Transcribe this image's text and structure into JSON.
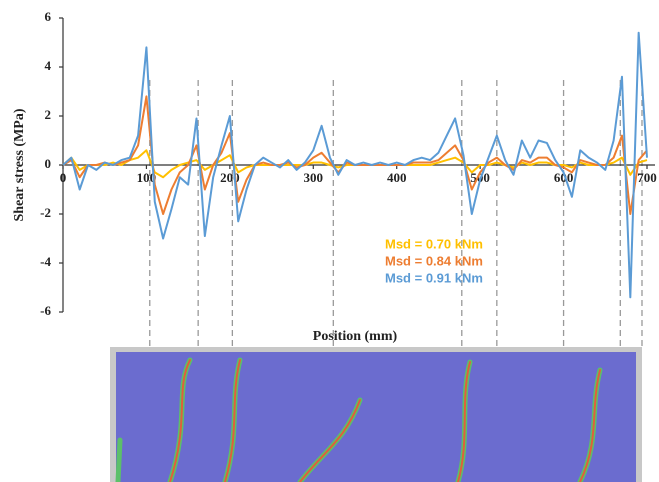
{
  "chart_data": {
    "type": "line",
    "y_label": "Shear stress (MPa)",
    "x_label": "Position (mm)",
    "xlim": [
      0,
      700
    ],
    "xticks": [
      0,
      100,
      200,
      300,
      400,
      500,
      600,
      700
    ],
    "ylim": [
      -6,
      6
    ],
    "yticks": [
      -6,
      -4,
      -2,
      0,
      2,
      4,
      6
    ],
    "grid": false,
    "reference_lines": [
      104,
      162,
      203,
      324,
      478,
      520,
      600,
      668,
      694
    ],
    "x": [
      0,
      10,
      20,
      30,
      40,
      50,
      60,
      70,
      80,
      90,
      100,
      110,
      120,
      130,
      140,
      150,
      160,
      170,
      180,
      190,
      200,
      210,
      220,
      230,
      240,
      250,
      260,
      270,
      280,
      290,
      300,
      310,
      320,
      330,
      340,
      350,
      360,
      370,
      380,
      390,
      400,
      410,
      420,
      430,
      440,
      450,
      460,
      470,
      480,
      490,
      500,
      510,
      520,
      530,
      540,
      550,
      560,
      570,
      580,
      590,
      600,
      610,
      620,
      630,
      640,
      650,
      660,
      670,
      680,
      690,
      700
    ],
    "series": [
      {
        "name": "Msd = 0.70 kNm",
        "color": "#ffc000",
        "values": [
          0,
          0.3,
          -0.2,
          0,
          0,
          0,
          0.1,
          0,
          0.2,
          0.3,
          0.6,
          -0.3,
          -0.5,
          -0.2,
          0,
          0.1,
          0.2,
          -0.2,
          0,
          0.2,
          0.4,
          -0.3,
          -0.1,
          0,
          0,
          0,
          0,
          0,
          0,
          0,
          0.1,
          0.1,
          0,
          -0.1,
          0,
          0,
          0,
          0,
          0,
          0,
          0,
          0,
          0,
          0,
          0,
          0.1,
          0.2,
          0.3,
          0.1,
          -0.3,
          0,
          0,
          0.1,
          0,
          -0.1,
          0.1,
          0,
          0.1,
          0.1,
          0,
          0,
          -0.1,
          0.1,
          0,
          0,
          0,
          0.1,
          0.3,
          -0.4,
          0.1,
          0.2
        ]
      },
      {
        "name": "Msd = 0.84 kNm",
        "color": "#ed7d31",
        "values": [
          0,
          0.2,
          -0.5,
          0,
          0,
          0.1,
          0,
          0.1,
          0.2,
          0.8,
          2.8,
          -0.8,
          -2.0,
          -1.0,
          -0.3,
          0,
          0.8,
          -1.0,
          0,
          0.5,
          1.3,
          -1.5,
          -0.6,
          0,
          0.1,
          0,
          0,
          0.1,
          -0.1,
          0,
          0.3,
          0.5,
          0.1,
          -0.3,
          0.1,
          0,
          0,
          0,
          0,
          0,
          0,
          0,
          0.1,
          0.1,
          0.1,
          0.2,
          0.5,
          0.8,
          0.2,
          -1.0,
          -0.3,
          0.1,
          0.3,
          0,
          -0.2,
          0.2,
          0.1,
          0.3,
          0.3,
          0,
          -0.1,
          -0.3,
          0.2,
          0.1,
          0,
          0,
          0.3,
          1.2,
          -2.0,
          0.2,
          0.6
        ]
      },
      {
        "name": "Msd = 0.91 kNm",
        "color": "#5b9bd5",
        "values": [
          0,
          0.3,
          -1.0,
          0,
          -0.2,
          0.1,
          0,
          0.2,
          0.3,
          1.2,
          4.8,
          -1.5,
          -3.0,
          -1.8,
          -0.5,
          -0.8,
          1.9,
          -2.9,
          -0.5,
          0.8,
          2.0,
          -2.3,
          -1.0,
          0,
          0.3,
          0.1,
          -0.1,
          0.2,
          -0.2,
          0.1,
          0.6,
          1.6,
          0.3,
          -0.4,
          0.2,
          0,
          0.1,
          0,
          0.1,
          0,
          0.1,
          0,
          0.2,
          0.3,
          0.2,
          0.5,
          1.2,
          1.9,
          0.4,
          -2.0,
          -0.6,
          0.3,
          1.2,
          0.2,
          -0.4,
          1.0,
          0.3,
          1.0,
          0.9,
          0.2,
          -0.3,
          -1.3,
          0.6,
          0.3,
          0.1,
          -0.2,
          1.0,
          3.6,
          -5.4,
          5.4,
          0.3
        ]
      }
    ]
  }
}
